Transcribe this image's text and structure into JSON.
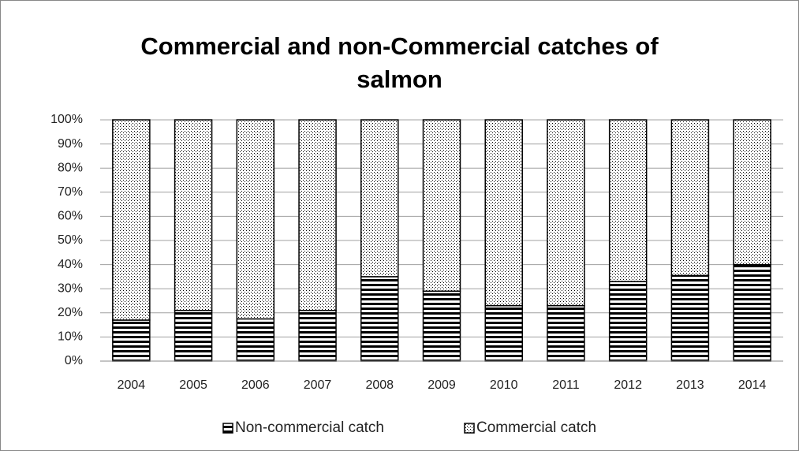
{
  "chart_data": {
    "type": "stacked_bar",
    "title": "Commercial and non-Commercial catches of salmon",
    "categories": [
      "2004",
      "2005",
      "2006",
      "2007",
      "2008",
      "2009",
      "2010",
      "2011",
      "2012",
      "2013",
      "2014"
    ],
    "series": [
      {
        "name": "Non-commercial catch",
        "color": "#000000",
        "values": [
          17,
          21,
          17.5,
          21,
          35,
          29,
          23,
          23,
          33,
          35.5,
          40
        ]
      },
      {
        "name": "Commercial catch",
        "color": "#000000",
        "values": [
          83,
          79,
          82.5,
          79,
          65,
          71,
          77,
          77,
          67,
          64.5,
          60
        ]
      }
    ],
    "ylim": [
      0,
      100
    ],
    "yticks": [
      {
        "value": 0,
        "label": "0%"
      },
      {
        "value": 10,
        "label": "10%"
      },
      {
        "value": 20,
        "label": "20%"
      },
      {
        "value": 30,
        "label": "30%"
      },
      {
        "value": 40,
        "label": "40%"
      },
      {
        "value": 50,
        "label": "50%"
      },
      {
        "value": 60,
        "label": "60%"
      },
      {
        "value": 70,
        "label": "70%"
      },
      {
        "value": 80,
        "label": "80%"
      },
      {
        "value": 90,
        "label": "90%"
      },
      {
        "value": 100,
        "label": "100%"
      }
    ],
    "grid": true,
    "legend": "bottom"
  }
}
